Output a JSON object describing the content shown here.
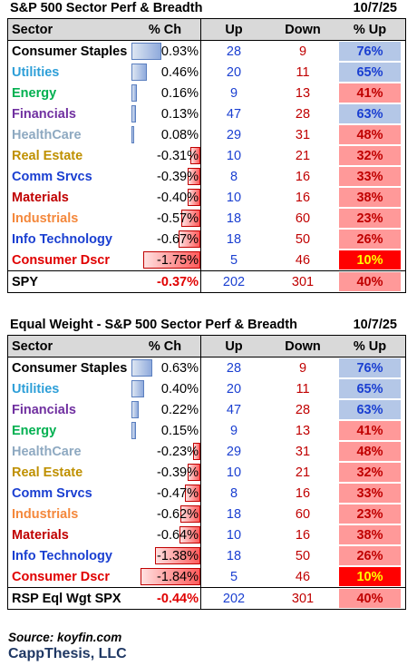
{
  "colors": {
    "up_blue": "#1a3fd1",
    "down_red": "#c00000",
    "pup_blue": "#b4c7e7",
    "pup_pink": "#ff9999",
    "pup_red": "#ff0000",
    "pup_yellow_text": "#ffff00"
  },
  "headers": {
    "sector": "Sector",
    "pct": "% Ch",
    "up": "Up",
    "down": "Down",
    "pup": "% Up"
  },
  "table1": {
    "title": "S&P 500 Sector Perf & Breadth",
    "date": "10/7/25",
    "rows": [
      {
        "name": "Consumer Staples",
        "color": "#000000",
        "pct": "0.93%",
        "pct_value": 0.93,
        "up": "28",
        "down": "9",
        "pup": "76%",
        "pup_bg": "#b4c7e7",
        "pup_color": "#1a3fd1"
      },
      {
        "name": "Utilities",
        "color": "#2e9fd8",
        "pct": "0.46%",
        "pct_value": 0.46,
        "up": "20",
        "down": "11",
        "pup": "65%",
        "pup_bg": "#b4c7e7",
        "pup_color": "#1a3fd1"
      },
      {
        "name": "Energy",
        "color": "#00b050",
        "pct": "0.16%",
        "pct_value": 0.16,
        "up": "9",
        "down": "13",
        "pup": "41%",
        "pup_bg": "#ff9999",
        "pup_color": "#c00000"
      },
      {
        "name": "Financials",
        "color": "#7030a0",
        "pct": "0.13%",
        "pct_value": 0.13,
        "up": "47",
        "down": "28",
        "pup": "63%",
        "pup_bg": "#b4c7e7",
        "pup_color": "#1a3fd1"
      },
      {
        "name": "HealthCare",
        "color": "#8ea9c1",
        "pct": "0.08%",
        "pct_value": 0.08,
        "up": "29",
        "down": "31",
        "pup": "48%",
        "pup_bg": "#ff9999",
        "pup_color": "#c00000"
      },
      {
        "name": "Real Estate",
        "color": "#bf9000",
        "pct": "-0.31%",
        "pct_value": -0.31,
        "up": "10",
        "down": "21",
        "pup": "32%",
        "pup_bg": "#ff9999",
        "pup_color": "#c00000"
      },
      {
        "name": "Comm Srvcs",
        "color": "#1a3fd1",
        "pct": "-0.39%",
        "pct_value": -0.39,
        "up": "8",
        "down": "16",
        "pup": "33%",
        "pup_bg": "#ff9999",
        "pup_color": "#c00000"
      },
      {
        "name": "Materials",
        "color": "#c00000",
        "pct": "-0.40%",
        "pct_value": -0.4,
        "up": "10",
        "down": "16",
        "pup": "38%",
        "pup_bg": "#ff9999",
        "pup_color": "#c00000"
      },
      {
        "name": "Industrials",
        "color": "#f4883c",
        "pct": "-0.57%",
        "pct_value": -0.57,
        "up": "18",
        "down": "60",
        "pup": "23%",
        "pup_bg": "#ff9999",
        "pup_color": "#c00000"
      },
      {
        "name": "Info Technology",
        "color": "#1a3fd1",
        "pct": "-0.67%",
        "pct_value": -0.67,
        "up": "18",
        "down": "50",
        "pup": "26%",
        "pup_bg": "#ff9999",
        "pup_color": "#c00000"
      },
      {
        "name": "Consumer Dscr",
        "color": "#e00000",
        "pct": "-1.75%",
        "pct_value": -1.75,
        "up": "5",
        "down": "46",
        "pup": "10%",
        "pup_bg": "#ff0000",
        "pup_color": "#ffff00"
      }
    ],
    "footer": {
      "name": "SPY",
      "pct": "-0.37%",
      "up": "202",
      "down": "301",
      "pup": "40%",
      "pup_bg": "#ff9999",
      "pup_color": "#c00000"
    }
  },
  "table2": {
    "title": "Equal Weight - S&P 500 Sector Perf & Breadth",
    "date": "10/7/25",
    "rows": [
      {
        "name": "Consumer Staples",
        "color": "#000000",
        "pct": "0.63%",
        "pct_value": 0.63,
        "up": "28",
        "down": "9",
        "pup": "76%",
        "pup_bg": "#b4c7e7",
        "pup_color": "#1a3fd1"
      },
      {
        "name": "Utilities",
        "color": "#2e9fd8",
        "pct": "0.40%",
        "pct_value": 0.4,
        "up": "20",
        "down": "11",
        "pup": "65%",
        "pup_bg": "#b4c7e7",
        "pup_color": "#1a3fd1"
      },
      {
        "name": "Financials",
        "color": "#7030a0",
        "pct": "0.22%",
        "pct_value": 0.22,
        "up": "47",
        "down": "28",
        "pup": "63%",
        "pup_bg": "#b4c7e7",
        "pup_color": "#1a3fd1"
      },
      {
        "name": "Energy",
        "color": "#00b050",
        "pct": "0.15%",
        "pct_value": 0.15,
        "up": "9",
        "down": "13",
        "pup": "41%",
        "pup_bg": "#ff9999",
        "pup_color": "#c00000"
      },
      {
        "name": "HealthCare",
        "color": "#8ea9c1",
        "pct": "-0.23%",
        "pct_value": -0.23,
        "up": "29",
        "down": "31",
        "pup": "48%",
        "pup_bg": "#ff9999",
        "pup_color": "#c00000"
      },
      {
        "name": "Real Estate",
        "color": "#bf9000",
        "pct": "-0.39%",
        "pct_value": -0.39,
        "up": "10",
        "down": "21",
        "pup": "32%",
        "pup_bg": "#ff9999",
        "pup_color": "#c00000"
      },
      {
        "name": "Comm Srvcs",
        "color": "#1a3fd1",
        "pct": "-0.47%",
        "pct_value": -0.47,
        "up": "8",
        "down": "16",
        "pup": "33%",
        "pup_bg": "#ff9999",
        "pup_color": "#c00000"
      },
      {
        "name": "Industrials",
        "color": "#f4883c",
        "pct": "-0.62%",
        "pct_value": -0.62,
        "up": "18",
        "down": "60",
        "pup": "23%",
        "pup_bg": "#ff9999",
        "pup_color": "#c00000"
      },
      {
        "name": "Materials",
        "color": "#c00000",
        "pct": "-0.64%",
        "pct_value": -0.64,
        "up": "10",
        "down": "16",
        "pup": "38%",
        "pup_bg": "#ff9999",
        "pup_color": "#c00000"
      },
      {
        "name": "Info Technology",
        "color": "#1a3fd1",
        "pct": "-1.38%",
        "pct_value": -1.38,
        "up": "18",
        "down": "50",
        "pup": "26%",
        "pup_bg": "#ff9999",
        "pup_color": "#c00000"
      },
      {
        "name": "Consumer Dscr",
        "color": "#e00000",
        "pct": "-1.84%",
        "pct_value": -1.84,
        "up": "5",
        "down": "46",
        "pup": "10%",
        "pup_bg": "#ff0000",
        "pup_color": "#ffff00"
      }
    ],
    "footer": {
      "name": "RSP Eql Wgt SPX",
      "pct": "-0.44%",
      "up": "202",
      "down": "301",
      "pup": "40%",
      "pup_bg": "#ff9999",
      "pup_color": "#c00000"
    }
  },
  "source": "Source: koyfin.com",
  "brand": "CappThesis, LLC"
}
